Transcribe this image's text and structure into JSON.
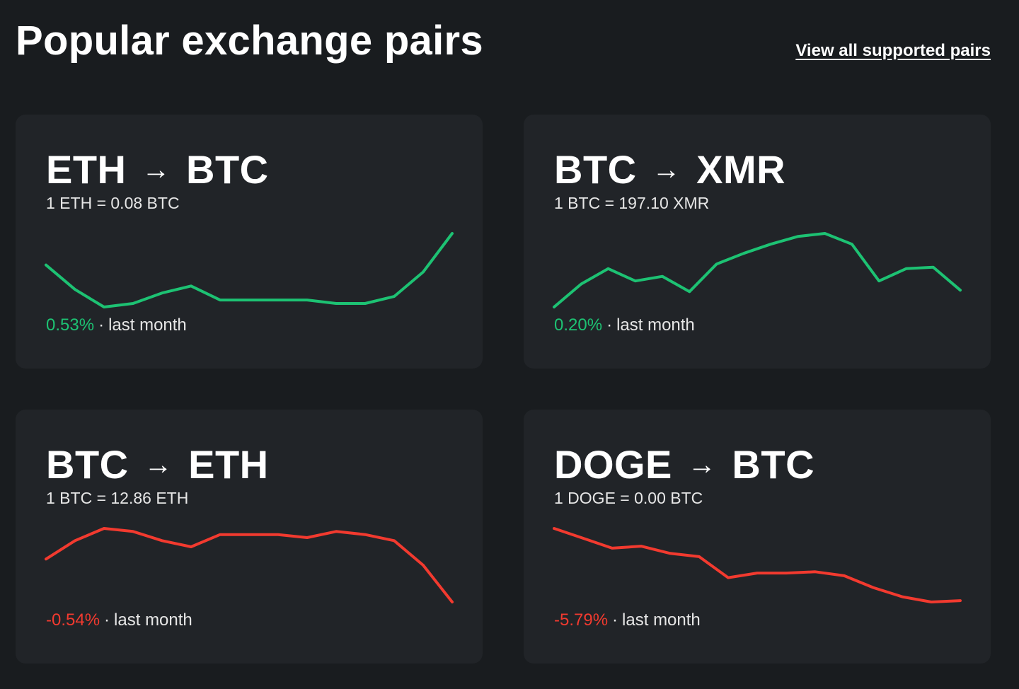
{
  "header": {
    "title": "Popular exchange pairs",
    "view_all_label": "View all supported pairs"
  },
  "colors": {
    "up": "#1dc273",
    "down": "#f23a2f",
    "card_bg": "#212428",
    "page_bg": "#191c1f"
  },
  "pairs": [
    {
      "from": "ETH",
      "arrow": "→",
      "to": "BTC",
      "rate_text": "1 ETH = 0.08 BTC",
      "change": "0.53%",
      "period": "last month",
      "trend": "up",
      "separator": "·",
      "sparkline_values": [
        0.0769,
        0.0762,
        0.0757,
        0.0758,
        0.0761,
        0.0763,
        0.0759,
        0.0759,
        0.0759,
        0.0759,
        0.0758,
        0.0758,
        0.076,
        0.0767,
        0.0778
      ]
    },
    {
      "from": "BTC",
      "arrow": "→",
      "to": "XMR",
      "rate_text": "1 BTC = 197.10 XMR",
      "change": "0.20%",
      "period": "last month",
      "trend": "up",
      "separator": "·",
      "sparkline_values": [
        193.5,
        195.0,
        196.0,
        195.2,
        195.5,
        194.5,
        196.3,
        197.0,
        197.6,
        198.1,
        198.3,
        197.6,
        195.2,
        196.0,
        196.1,
        194.6
      ]
    },
    {
      "from": "BTC",
      "arrow": "→",
      "to": "ETH",
      "rate_text": "1 BTC = 12.86 ETH",
      "change": "-0.54%",
      "period": "last month",
      "trend": "down",
      "separator": "·",
      "sparkline_values": [
        13.02,
        13.08,
        13.12,
        13.11,
        13.08,
        13.06,
        13.1,
        13.1,
        13.1,
        13.09,
        13.11,
        13.1,
        13.08,
        13.0,
        12.88
      ]
    },
    {
      "from": "DOGE",
      "arrow": "→",
      "to": "BTC",
      "rate_text": "1 DOGE = 0.00 BTC",
      "change": "-5.79%",
      "period": "last month",
      "trend": "down",
      "separator": "·",
      "sparkline_values": [
        1.0,
        0.985,
        0.97,
        0.973,
        0.962,
        0.957,
        0.925,
        0.932,
        0.932,
        0.934,
        0.928,
        0.91,
        0.896,
        0.888,
        0.89
      ]
    }
  ]
}
